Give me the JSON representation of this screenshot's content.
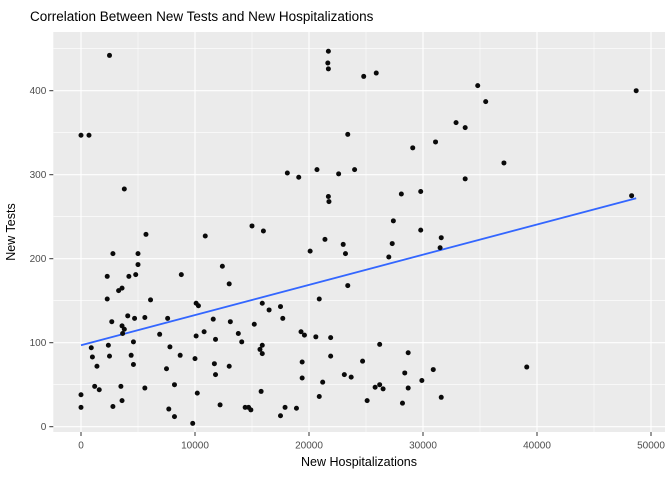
{
  "chart_data": {
    "type": "scatter",
    "title": "Correlation Between New Tests and New Hospitalizations",
    "xlabel": "New Hospitalizations",
    "ylabel": "New Tests",
    "x_ticks": [
      0,
      10000,
      20000,
      30000,
      40000,
      50000
    ],
    "y_ticks": [
      0,
      100,
      200,
      300,
      400
    ],
    "x_minor_ticks": [
      5000,
      15000,
      25000,
      35000,
      45000
    ],
    "y_minor_ticks": [
      50,
      150,
      250,
      350,
      450
    ],
    "xlim": [
      -2400,
      51200
    ],
    "ylim": [
      -7,
      470
    ],
    "grid": "ggplot-gray-panel-white-major-minor",
    "legend": "none",
    "points": [
      [
        2500,
        442
      ],
      [
        0,
        347
      ],
      [
        700,
        347
      ],
      [
        3800,
        283
      ],
      [
        21700,
        447
      ],
      [
        21650,
        433
      ],
      [
        21700,
        426
      ],
      [
        24800,
        417
      ],
      [
        25900,
        421
      ],
      [
        23400,
        348
      ],
      [
        32900,
        362
      ],
      [
        29100,
        332
      ],
      [
        31100,
        339
      ],
      [
        18100,
        302
      ],
      [
        19100,
        297
      ],
      [
        20700,
        306
      ],
      [
        22600,
        301
      ],
      [
        24000,
        306
      ],
      [
        21700,
        274
      ],
      [
        21750,
        268
      ],
      [
        28100,
        277
      ],
      [
        29800,
        280
      ],
      [
        27400,
        245
      ],
      [
        15000,
        239
      ],
      [
        34800,
        406
      ],
      [
        48700,
        400
      ],
      [
        35500,
        387
      ],
      [
        33700,
        356
      ],
      [
        37100,
        314
      ],
      [
        33700,
        295
      ],
      [
        48300,
        275
      ],
      [
        5700,
        229
      ],
      [
        10900,
        227
      ],
      [
        2800,
        206
      ],
      [
        5000,
        206
      ],
      [
        5000,
        193
      ],
      [
        12400,
        191
      ],
      [
        2300,
        179
      ],
      [
        4200,
        179
      ],
      [
        4800,
        181
      ],
      [
        8800,
        181
      ],
      [
        13000,
        170
      ],
      [
        3300,
        162
      ],
      [
        3600,
        165
      ],
      [
        2300,
        152
      ],
      [
        6100,
        151
      ],
      [
        10100,
        147
      ],
      [
        10300,
        144
      ],
      [
        7600,
        129
      ],
      [
        11600,
        128
      ],
      [
        13100,
        125
      ],
      [
        2700,
        125
      ],
      [
        4100,
        132
      ],
      [
        4700,
        129
      ],
      [
        5600,
        130
      ],
      [
        3600,
        120
      ],
      [
        3800,
        116
      ],
      [
        3650,
        111
      ],
      [
        6900,
        110
      ],
      [
        10100,
        108
      ],
      [
        10800,
        113
      ],
      [
        11800,
        104
      ],
      [
        13800,
        111
      ],
      [
        14100,
        101
      ],
      [
        15200,
        122
      ],
      [
        900,
        94
      ],
      [
        2400,
        97
      ],
      [
        1000,
        83
      ],
      [
        2500,
        84
      ],
      [
        7800,
        95
      ],
      [
        8700,
        85
      ],
      [
        10000,
        81
      ],
      [
        1400,
        72
      ],
      [
        7500,
        69
      ],
      [
        11700,
        75
      ],
      [
        11800,
        62
      ],
      [
        13000,
        72
      ],
      [
        4600,
        101
      ],
      [
        4400,
        85
      ],
      [
        4600,
        74
      ],
      [
        0,
        38
      ],
      [
        1200,
        48
      ],
      [
        1600,
        44
      ],
      [
        3500,
        48
      ],
      [
        5600,
        46
      ],
      [
        8200,
        50
      ],
      [
        10200,
        40
      ],
      [
        3600,
        31
      ],
      [
        2800,
        24
      ],
      [
        0,
        23
      ],
      [
        12200,
        26
      ],
      [
        14400,
        23
      ],
      [
        14700,
        23
      ],
      [
        7700,
        21
      ],
      [
        8200,
        12
      ],
      [
        9800,
        4
      ],
      [
        16000,
        233
      ],
      [
        29800,
        234
      ],
      [
        21400,
        223
      ],
      [
        20100,
        209
      ],
      [
        23000,
        217
      ],
      [
        23200,
        206
      ],
      [
        27300,
        218
      ],
      [
        27000,
        202
      ],
      [
        31600,
        225
      ],
      [
        31500,
        213
      ],
      [
        23400,
        168
      ],
      [
        20900,
        152
      ],
      [
        15900,
        147
      ],
      [
        16500,
        139
      ],
      [
        17500,
        143
      ],
      [
        17700,
        129
      ],
      [
        19300,
        113
      ],
      [
        19600,
        109
      ],
      [
        20600,
        107
      ],
      [
        21900,
        106
      ],
      [
        15900,
        97
      ],
      [
        15700,
        92
      ],
      [
        15900,
        87
      ],
      [
        26200,
        98
      ],
      [
        21900,
        84
      ],
      [
        19400,
        77
      ],
      [
        24700,
        78
      ],
      [
        28700,
        88
      ],
      [
        19400,
        58
      ],
      [
        23100,
        62
      ],
      [
        23700,
        59
      ],
      [
        21200,
        53
      ],
      [
        28400,
        64
      ],
      [
        29900,
        55
      ],
      [
        30900,
        68
      ],
      [
        15800,
        42
      ],
      [
        25800,
        47
      ],
      [
        26200,
        50
      ],
      [
        26500,
        45
      ],
      [
        28700,
        46
      ],
      [
        20900,
        36
      ],
      [
        25100,
        31
      ],
      [
        28200,
        28
      ],
      [
        31600,
        35
      ],
      [
        17900,
        23
      ],
      [
        18900,
        22
      ],
      [
        17500,
        13
      ],
      [
        14900,
        20
      ],
      [
        39100,
        71
      ]
    ],
    "trend_line": {
      "type": "linear",
      "x0": 0,
      "y0": 97,
      "x1": 48700,
      "y1": 272
    },
    "colors": {
      "panel_bg": "#ebebeb",
      "grid_major": "#ffffff",
      "grid_minor": "#ffffff",
      "point": "#0a0a0a",
      "trend": "#3366ff",
      "tick_mark": "#333333",
      "tick_text": "#4d4d4d",
      "title_text": "#000000"
    }
  }
}
